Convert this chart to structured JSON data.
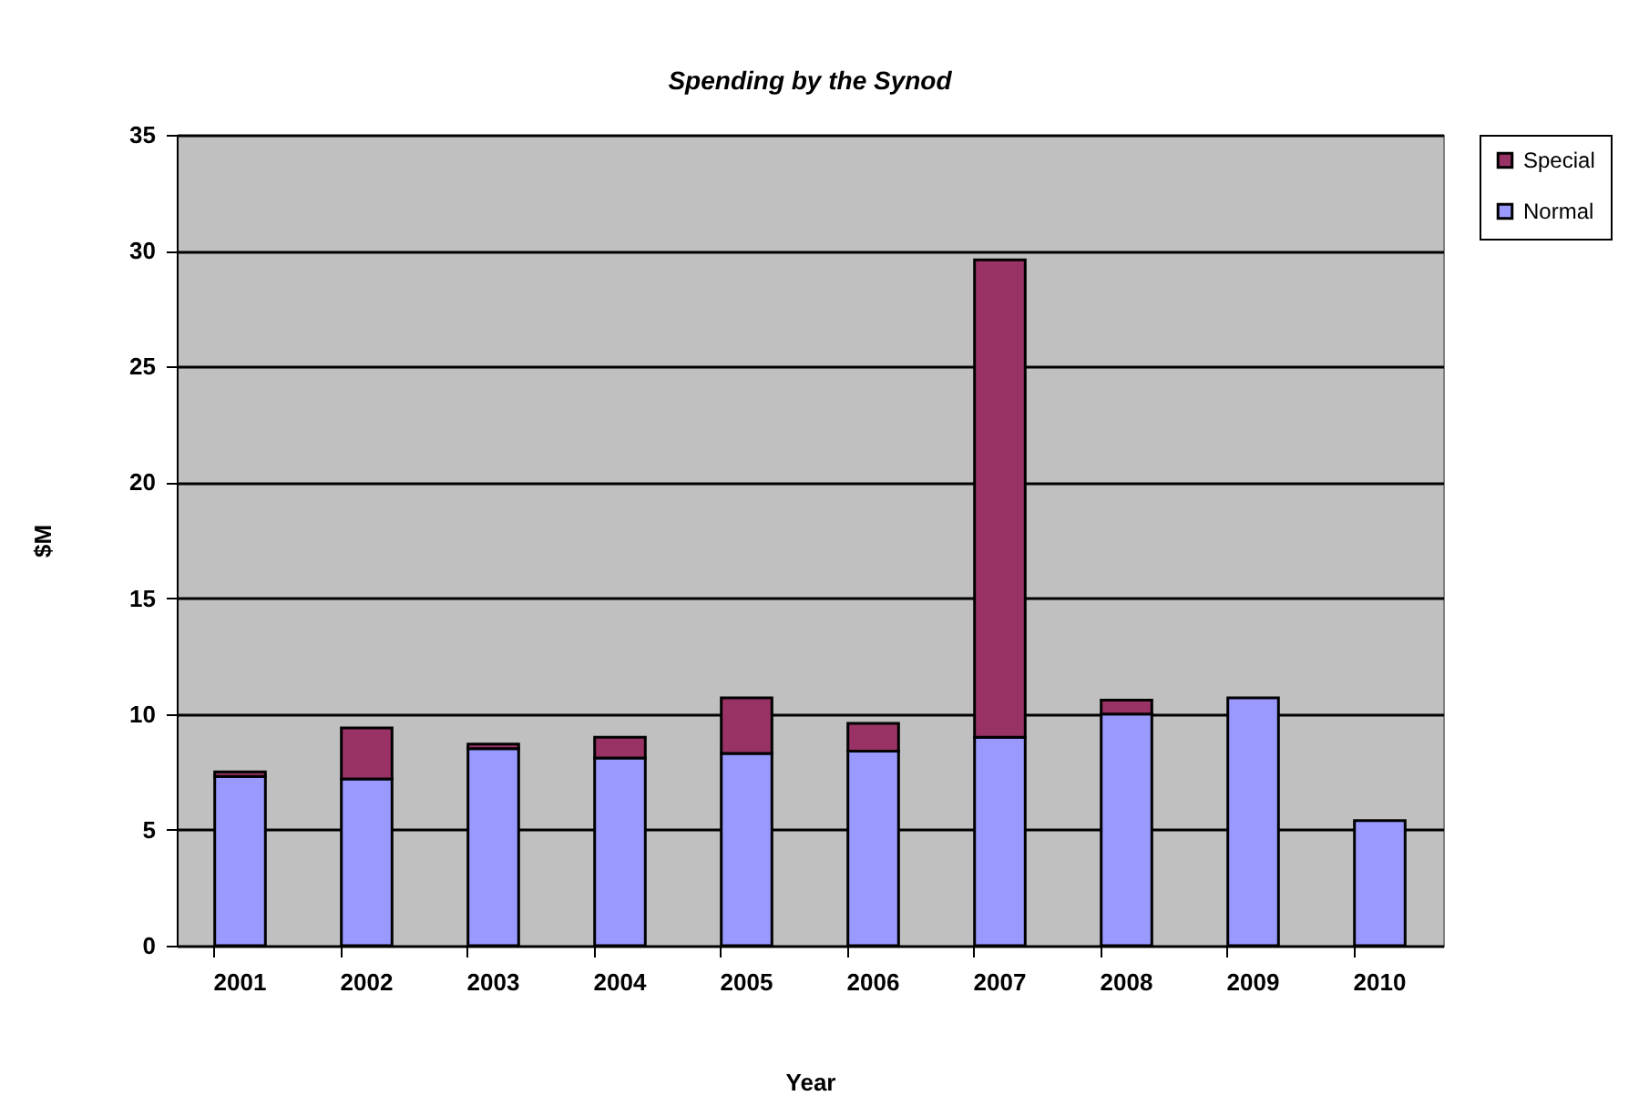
{
  "chart_data": {
    "type": "bar",
    "title": "Spending by the Synod",
    "xlabel": "Year",
    "ylabel": "$M",
    "categories": [
      "2001",
      "2002",
      "2003",
      "2004",
      "2005",
      "2006",
      "2007",
      "2008",
      "2009",
      "2010"
    ],
    "series": [
      {
        "name": "Normal",
        "color": "#9999ff",
        "values": [
          7.3,
          7.2,
          8.5,
          8.1,
          8.3,
          8.4,
          9.0,
          10.0,
          10.7,
          5.4
        ]
      },
      {
        "name": "Special",
        "color": "#993366",
        "values": [
          0.2,
          2.2,
          0.2,
          0.9,
          2.4,
          1.2,
          20.6,
          0.6,
          null,
          null
        ]
      }
    ],
    "stacked": true,
    "ylim": [
      0,
      35
    ],
    "yticks": [
      0,
      5,
      10,
      15,
      20,
      25,
      30,
      35
    ],
    "grid": "y",
    "legend": "right"
  }
}
